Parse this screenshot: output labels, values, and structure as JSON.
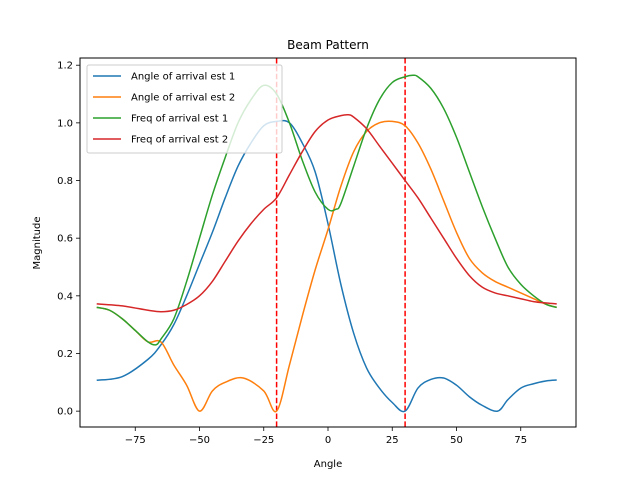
{
  "chart_data": {
    "type": "line",
    "title": "Beam Pattern",
    "xlabel": "Angle",
    "ylabel": "Magnitude",
    "xlim": [
      -96.5,
      96.5
    ],
    "ylim": [
      -0.055,
      1.225
    ],
    "xticks": [
      -75,
      -50,
      -25,
      0,
      25,
      50,
      75
    ],
    "yticks": [
      0.0,
      0.2,
      0.4,
      0.6,
      0.8,
      1.0,
      1.2
    ],
    "grid": false,
    "legend_position": "upper-left",
    "vlines": [
      {
        "x": -20,
        "color": "#ff0000",
        "style": "dashed"
      },
      {
        "x": 30,
        "color": "#ff0000",
        "style": "dashed"
      }
    ],
    "series": [
      {
        "name": "Angle of arrival est 1",
        "color": "#1f77b4",
        "x": [
          -90,
          -80,
          -70,
          -65,
          -60,
          -55,
          -50,
          -45,
          -40,
          -35,
          -30,
          -25,
          -20,
          -15,
          -10,
          -5,
          0,
          5,
          10,
          15,
          20,
          25,
          30,
          35,
          40,
          45,
          50,
          55,
          60,
          66,
          70,
          75,
          80,
          85,
          89
        ],
        "y": [
          0.107,
          0.12,
          0.18,
          0.23,
          0.3,
          0.4,
          0.51,
          0.62,
          0.74,
          0.85,
          0.93,
          0.99,
          1.005,
          1.0,
          0.93,
          0.83,
          0.65,
          0.44,
          0.27,
          0.15,
          0.08,
          0.03,
          0.0,
          0.08,
          0.11,
          0.115,
          0.09,
          0.05,
          0.02,
          0.0,
          0.04,
          0.08,
          0.095,
          0.105,
          0.108
        ]
      },
      {
        "name": "Angle of arrival est 2",
        "color": "#ff7f0e",
        "x": [
          -90,
          -85,
          -80,
          -75,
          -70,
          -65,
          -60,
          -55,
          -50,
          -45,
          -40,
          -33,
          -25,
          -20,
          -15,
          -10,
          -5,
          0,
          5,
          10,
          15,
          20,
          25,
          30,
          35,
          40,
          45,
          50,
          55,
          60,
          65,
          70,
          75,
          80,
          85,
          89
        ],
        "y": [
          0.36,
          0.35,
          0.32,
          0.28,
          0.24,
          0.24,
          0.16,
          0.09,
          0.0,
          0.07,
          0.1,
          0.115,
          0.07,
          0.0,
          0.16,
          0.33,
          0.49,
          0.63,
          0.78,
          0.9,
          0.97,
          1.0,
          1.005,
          0.99,
          0.93,
          0.84,
          0.73,
          0.62,
          0.53,
          0.48,
          0.45,
          0.43,
          0.41,
          0.39,
          0.37,
          0.36
        ]
      },
      {
        "name": "Freq of arrival est 1",
        "color": "#2ca02c",
        "x": [
          -90,
          -85,
          -80,
          -75,
          -70,
          -67,
          -65,
          -60,
          -55,
          -50,
          -45,
          -40,
          -35,
          -30,
          -25,
          -20,
          -15,
          -10,
          -5,
          0,
          3,
          5,
          10,
          15,
          20,
          25,
          30,
          33,
          35,
          40,
          45,
          50,
          55,
          60,
          65,
          70,
          75,
          80,
          85,
          89
        ],
        "y": [
          0.36,
          0.35,
          0.32,
          0.28,
          0.24,
          0.23,
          0.25,
          0.32,
          0.45,
          0.6,
          0.75,
          0.88,
          1.0,
          1.08,
          1.13,
          1.1,
          1.0,
          0.87,
          0.76,
          0.7,
          0.7,
          0.72,
          0.85,
          0.98,
          1.08,
          1.14,
          1.16,
          1.165,
          1.16,
          1.12,
          1.05,
          0.95,
          0.83,
          0.71,
          0.6,
          0.5,
          0.44,
          0.4,
          0.37,
          0.36
        ]
      },
      {
        "name": "Freq of arrival est 2",
        "color": "#d62728",
        "x": [
          -90,
          -80,
          -70,
          -65,
          -60,
          -55,
          -50,
          -45,
          -40,
          -35,
          -30,
          -25,
          -20,
          -15,
          -10,
          -5,
          0,
          5,
          8,
          10,
          15,
          20,
          25,
          30,
          35,
          40,
          45,
          50,
          55,
          60,
          65,
          70,
          75,
          80,
          85,
          89
        ],
        "y": [
          0.372,
          0.365,
          0.35,
          0.345,
          0.35,
          0.37,
          0.4,
          0.45,
          0.52,
          0.59,
          0.65,
          0.7,
          0.74,
          0.82,
          0.9,
          0.97,
          1.01,
          1.025,
          1.028,
          1.02,
          0.98,
          0.92,
          0.86,
          0.8,
          0.74,
          0.67,
          0.6,
          0.53,
          0.47,
          0.43,
          0.41,
          0.4,
          0.39,
          0.38,
          0.375,
          0.372
        ]
      }
    ]
  }
}
